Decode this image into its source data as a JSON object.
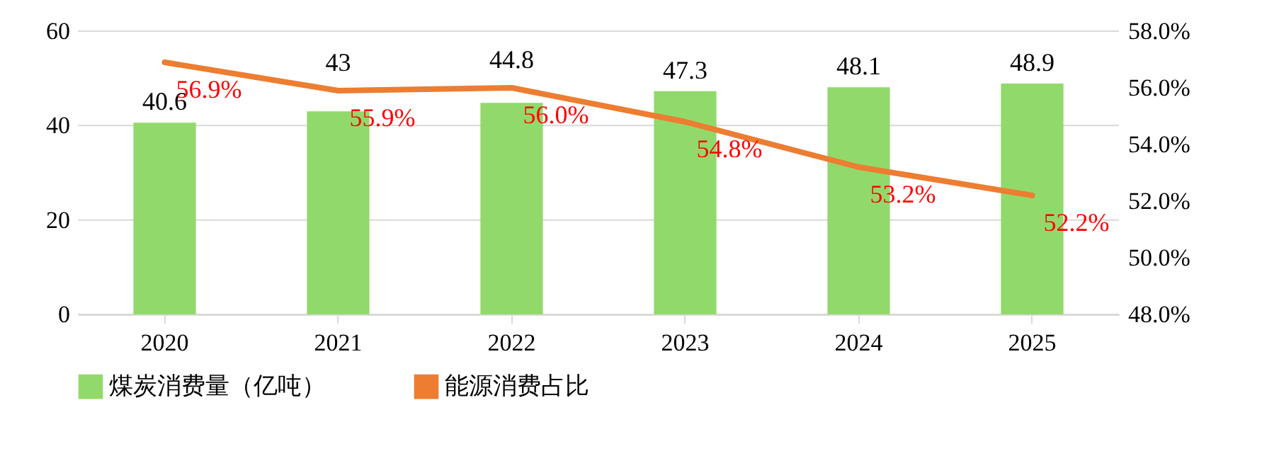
{
  "chart_data": {
    "type": "bar",
    "categories": [
      "2020",
      "2021",
      "2022",
      "2023",
      "2024",
      "2025"
    ],
    "series": [
      {
        "name": "煤炭消费量（亿吨）",
        "color": "#92d96b",
        "values": [
          40.6,
          43,
          44.8,
          47.3,
          48.1,
          48.9
        ]
      },
      {
        "name": "能源消费占比",
        "type": "line",
        "axis": "y2",
        "color": "#ed7d31",
        "values": [
          56.9,
          55.9,
          56.0,
          54.8,
          53.2,
          52.2
        ],
        "value_labels": [
          "56.9%",
          "55.9%",
          "56.0%",
          "54.8%",
          "53.2%",
          "52.2%"
        ]
      }
    ],
    "data_labels": true,
    "ylim": [
      0,
      60
    ],
    "yticks": [
      0,
      20,
      40,
      60
    ],
    "y2lim": [
      48,
      58
    ],
    "y2ticks": [
      {
        "value": 48,
        "label": "48.0%"
      },
      {
        "value": 50,
        "label": "50.0%"
      },
      {
        "value": 52,
        "label": "52.0%"
      },
      {
        "value": 54,
        "label": "54.0%"
      },
      {
        "value": 56,
        "label": "56.0%"
      },
      {
        "value": 58,
        "label": "58.0%"
      }
    ],
    "grid": "y",
    "legend": "bottom",
    "marker": "none",
    "line_style": "solid"
  }
}
